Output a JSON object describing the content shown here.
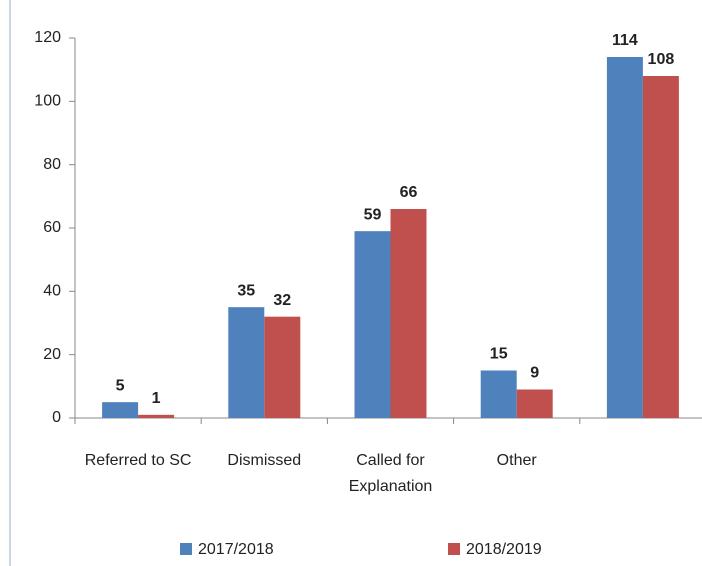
{
  "chart_data": {
    "type": "bar",
    "categories": [
      "Referred to SC",
      "Dismissed",
      "Called for Explanation",
      "Other",
      null
    ],
    "series": [
      {
        "name": "2017/2018",
        "color": "#4f81bd",
        "values": [
          5,
          35,
          59,
          15,
          114
        ]
      },
      {
        "name": "2018/2019",
        "color": "#c0504d",
        "values": [
          1,
          32,
          66,
          9,
          108
        ]
      }
    ],
    "ylim": [
      0,
      120
    ],
    "yticks": [
      0,
      20,
      40,
      60,
      80,
      100,
      120
    ],
    "legend": "bottom"
  }
}
